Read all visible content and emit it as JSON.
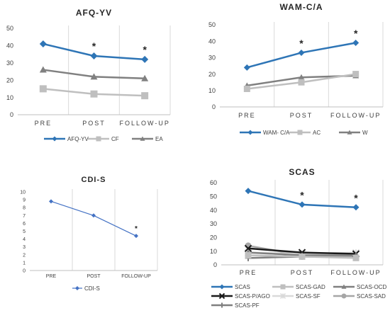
{
  "chart_data": [
    {
      "type": "line",
      "title": "AFQ-YV",
      "categories": [
        "PRE",
        "POST",
        "FOLLOW-UP"
      ],
      "ylim": [
        0,
        50
      ],
      "yticks": [
        0,
        10,
        20,
        30,
        40,
        50
      ],
      "grid": "vertical",
      "legend_placement": "bottom",
      "series": [
        {
          "name": "AFQ-YV",
          "values": [
            41,
            34,
            32
          ],
          "color": "#2e75b6",
          "marker": "diamond"
        },
        {
          "name": "CF",
          "values": [
            15,
            12,
            11
          ],
          "color": "#bfbfbf",
          "marker": "square"
        },
        {
          "name": "EA",
          "values": [
            26,
            22,
            21
          ],
          "color": "#808080",
          "marker": "triangle"
        }
      ],
      "annotations": [
        {
          "category": "POST",
          "value": 34,
          "text": "*"
        },
        {
          "category": "FOLLOW-UP",
          "value": 32,
          "text": "*"
        }
      ]
    },
    {
      "type": "line",
      "title": "WAM-C/A",
      "categories": [
        "PRE",
        "POST",
        "FOLLOW-UP"
      ],
      "ylim": [
        0,
        50
      ],
      "yticks": [
        0,
        10,
        20,
        30,
        40,
        50
      ],
      "grid": "vertical",
      "legend_placement": "bottom",
      "series": [
        {
          "name": "WAM- C/A",
          "values": [
            24,
            33,
            39
          ],
          "color": "#2e75b6",
          "marker": "diamond"
        },
        {
          "name": "AC",
          "values": [
            11,
            15,
            20
          ],
          "color": "#bfbfbf",
          "marker": "square"
        },
        {
          "name": "W",
          "values": [
            13,
            18,
            19
          ],
          "color": "#808080",
          "marker": "triangle"
        }
      ],
      "annotations": [
        {
          "category": "POST",
          "value": 33,
          "text": "*"
        },
        {
          "category": "FOLLOW-UP",
          "value": 39,
          "text": "*"
        }
      ]
    },
    {
      "type": "line",
      "title": "CDI-S",
      "categories": [
        "PRE",
        "POST",
        "FOLLOW-UP"
      ],
      "ylim": [
        0,
        10
      ],
      "yticks": [
        0,
        1,
        2,
        3,
        4,
        5,
        6,
        7,
        8,
        9,
        10
      ],
      "grid": "vertical",
      "legend_placement": "bottom",
      "series": [
        {
          "name": "CDI-S",
          "values": [
            8.8,
            7,
            4.4
          ],
          "color": "#4472c4",
          "marker": "diamond"
        }
      ],
      "annotations": [
        {
          "category": "FOLLOW-UP",
          "value": 4.4,
          "text": "*"
        }
      ]
    },
    {
      "type": "line",
      "title": "SCAS",
      "categories": [
        "PRE",
        "POST",
        "FOLLOW-UP"
      ],
      "ylim": [
        0,
        60
      ],
      "yticks": [
        0,
        10,
        20,
        30,
        40,
        50,
        60
      ],
      "grid": "vertical",
      "legend_placement": "bottom",
      "series": [
        {
          "name": "SCAS",
          "values": [
            54,
            44,
            42
          ],
          "color": "#2e75b6",
          "marker": "diamond"
        },
        {
          "name": "SCAS-GAD",
          "values": [
            7,
            6,
            5
          ],
          "color": "#bfbfbf",
          "marker": "square"
        },
        {
          "name": "SCAS-OCD",
          "values": [
            9,
            7,
            7
          ],
          "color": "#808080",
          "marker": "triangle"
        },
        {
          "name": "SCAS-P/AGO",
          "values": [
            12,
            9,
            8
          ],
          "color": "#1a1a1a",
          "marker": "x"
        },
        {
          "name": "SCAS-SF",
          "values": [
            9,
            8,
            9
          ],
          "color": "#d9d9d9",
          "marker": "star"
        },
        {
          "name": "SCAS-SAD",
          "values": [
            14,
            7,
            6
          ],
          "color": "#a6a6a6",
          "marker": "circle"
        },
        {
          "name": "SCAS-PF",
          "values": [
            5,
            6,
            6
          ],
          "color": "#7f7f7f",
          "marker": "plus"
        }
      ],
      "annotations": [
        {
          "category": "POST",
          "value": 44,
          "text": "*"
        },
        {
          "category": "FOLLOW-UP",
          "value": 42,
          "text": "*"
        }
      ]
    }
  ]
}
